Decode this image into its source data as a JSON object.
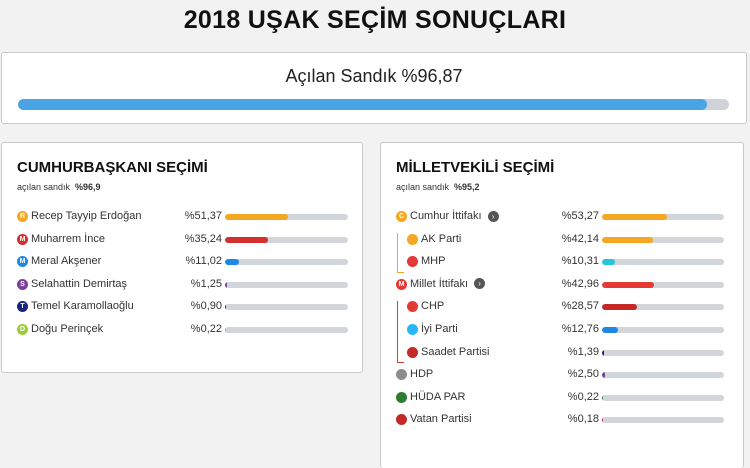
{
  "title": "2018 UŞAK SEÇİM SONUÇLARI",
  "ballot": {
    "label": "Açılan Sandık %96,87",
    "progress": 96.87,
    "color": "#4aa3e3"
  },
  "president": {
    "title": "CUMHURBAŞKANI SEÇİMİ",
    "sub_label": "açılan sandık",
    "sub_value": "%96,9",
    "candidates": [
      {
        "initial": "R",
        "name": "Recep Tayyip Erdoğan",
        "pct": "%51,37",
        "value": 51.37,
        "color": "#f5a623"
      },
      {
        "initial": "M",
        "name": "Muharrem İnce",
        "pct": "%35,24",
        "value": 35.24,
        "color": "#d32f2f"
      },
      {
        "initial": "M",
        "name": "Meral Akşener",
        "pct": "%11,02",
        "value": 11.02,
        "color": "#1e88e5"
      },
      {
        "initial": "S",
        "name": "Selahattin Demirtaş",
        "pct": "%1,25",
        "value": 1.25,
        "color": "#7b3f9e"
      },
      {
        "initial": "T",
        "name": "Temel Karamollaoğlu",
        "pct": "%0,90",
        "value": 0.9,
        "color": "#1a237e"
      },
      {
        "initial": "D",
        "name": "Doğu Perinçek",
        "pct": "%0,22",
        "value": 0.22,
        "color": "#9ccc3c"
      }
    ]
  },
  "parliament": {
    "title": "MİLLETVEKİLİ SEÇİMİ",
    "sub_label": "açılan sandık",
    "sub_value": "%95,2",
    "rows": [
      {
        "icon": "C",
        "name": "Cumhur İttifakı",
        "info": "›",
        "pct": "%53,27",
        "value": 53.27,
        "color": "#f5a623",
        "indent": false
      },
      {
        "icon": "",
        "name": "AK Parti",
        "pct": "%42,14",
        "value": 42.14,
        "color": "#f5a623",
        "icon_color": "#f5a623",
        "indent": true
      },
      {
        "icon": "",
        "name": "MHP",
        "pct": "%10,31",
        "value": 10.31,
        "color": "#26c6da",
        "icon_color": "#e53935",
        "indent": true
      },
      {
        "icon": "M",
        "name": "Millet İttifakı",
        "info": "›",
        "pct": "%42,96",
        "value": 42.96,
        "color": "#e53935",
        "indent": false
      },
      {
        "icon": "",
        "name": "CHP",
        "pct": "%28,57",
        "value": 28.57,
        "color": "#c62828",
        "icon_color": "#e53935",
        "indent": true
      },
      {
        "icon": "",
        "name": "İyi Parti",
        "pct": "%12,76",
        "value": 12.76,
        "color": "#1e88e5",
        "icon_color": "#29b6f6",
        "indent": true
      },
      {
        "icon": "",
        "name": "Saadet Partisi",
        "pct": "%1,39",
        "value": 1.39,
        "color": "#1a237e",
        "icon_color": "#c62828",
        "indent": true
      },
      {
        "icon": "",
        "name": "HDP",
        "pct": "%2,50",
        "value": 2.5,
        "color": "#7b3f9e",
        "icon_color": "#8d8d8d",
        "indent": false
      },
      {
        "icon": "",
        "name": "HÜDA PAR",
        "pct": "%0,22",
        "value": 0.22,
        "color": "#2e7d32",
        "icon_color": "#2e7d32",
        "indent": false
      },
      {
        "icon": "",
        "name": "Vatan Partisi",
        "pct": "%0,18",
        "value": 0.18,
        "color": "#c62828",
        "icon_color": "#c62828",
        "indent": false
      }
    ]
  }
}
